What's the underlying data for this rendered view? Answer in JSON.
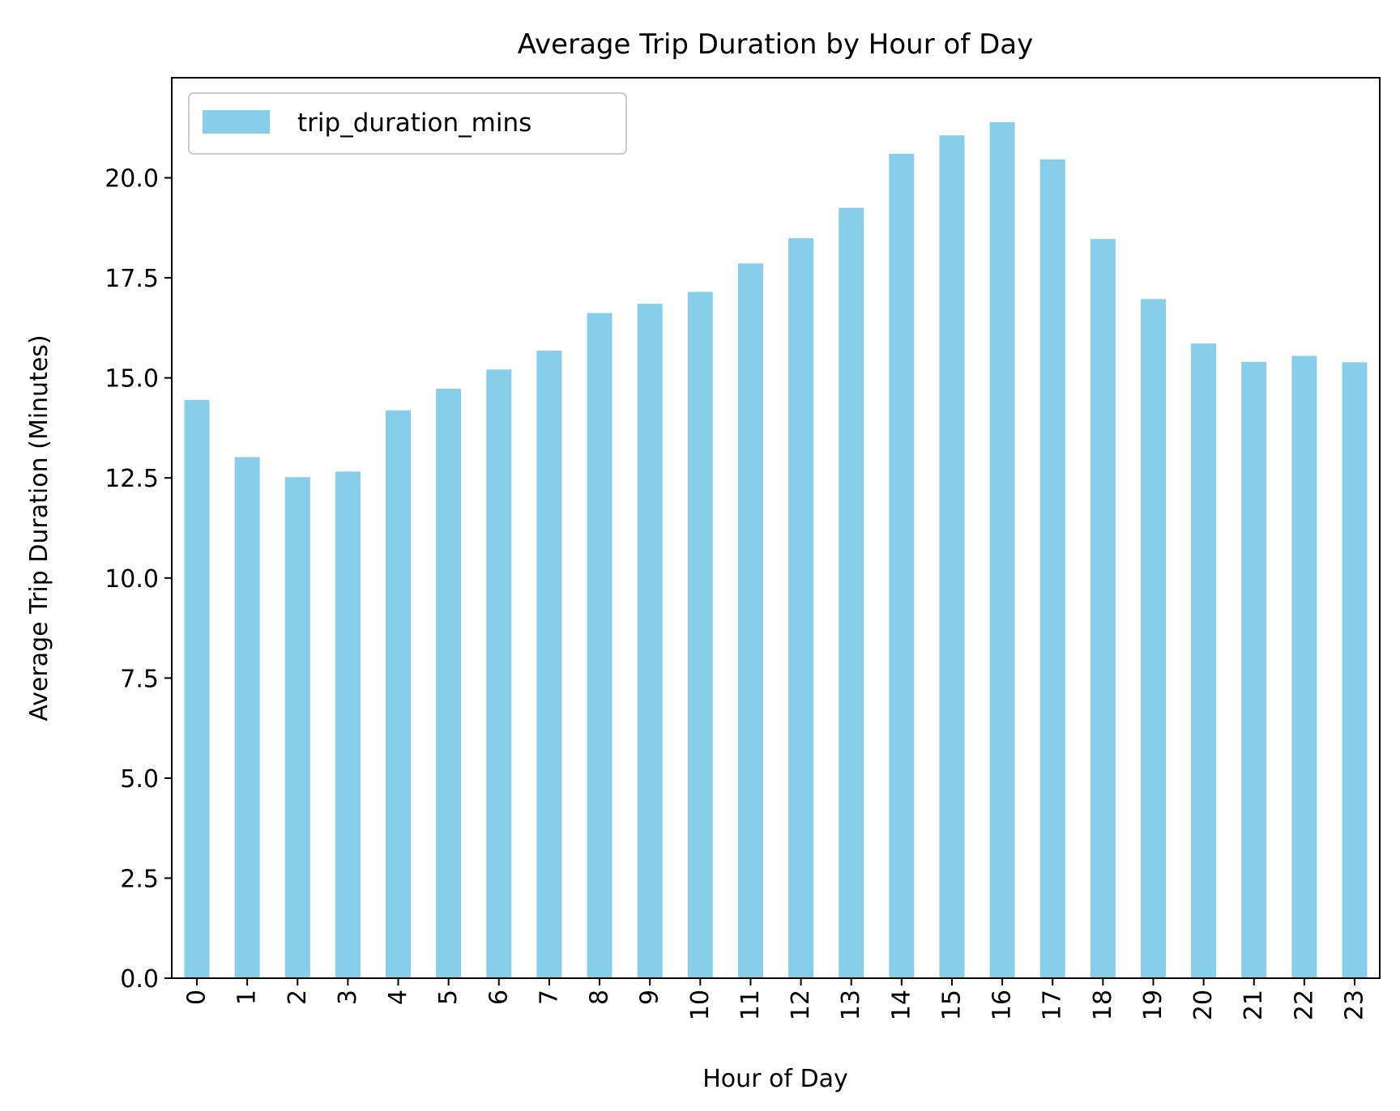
{
  "chart_data": {
    "type": "bar",
    "title": "Average Trip Duration by Hour of Day",
    "xlabel": "Hour of Day",
    "ylabel": "Average Trip Duration (Minutes)",
    "categories": [
      "0",
      "1",
      "2",
      "3",
      "4",
      "5",
      "6",
      "7",
      "8",
      "9",
      "10",
      "11",
      "12",
      "13",
      "14",
      "15",
      "16",
      "17",
      "18",
      "19",
      "20",
      "21",
      "22",
      "23"
    ],
    "series": [
      {
        "name": "trip_duration_mins",
        "values": [
          14.45,
          13.02,
          12.52,
          12.66,
          14.19,
          14.73,
          15.21,
          15.68,
          16.62,
          16.85,
          17.15,
          17.86,
          18.49,
          19.25,
          20.6,
          21.06,
          21.39,
          20.46,
          18.47,
          16.97,
          15.86,
          15.4,
          15.55,
          15.39
        ],
        "color": "#87ceeb"
      }
    ],
    "ylim": [
      0,
      22.5
    ],
    "yticks": [
      0.0,
      2.5,
      5.0,
      7.5,
      10.0,
      12.5,
      15.0,
      17.5,
      20.0
    ],
    "ytick_labels": [
      "0.0",
      "2.5",
      "5.0",
      "7.5",
      "10.0",
      "12.5",
      "15.0",
      "17.5",
      "20.0"
    ],
    "grid": false,
    "legend": {
      "position": "top-left",
      "entries": [
        "trip_duration_mins"
      ]
    },
    "colors": {
      "bar": "#87ceeb",
      "axis": "#000000",
      "legend_border": "#cccccc"
    }
  }
}
